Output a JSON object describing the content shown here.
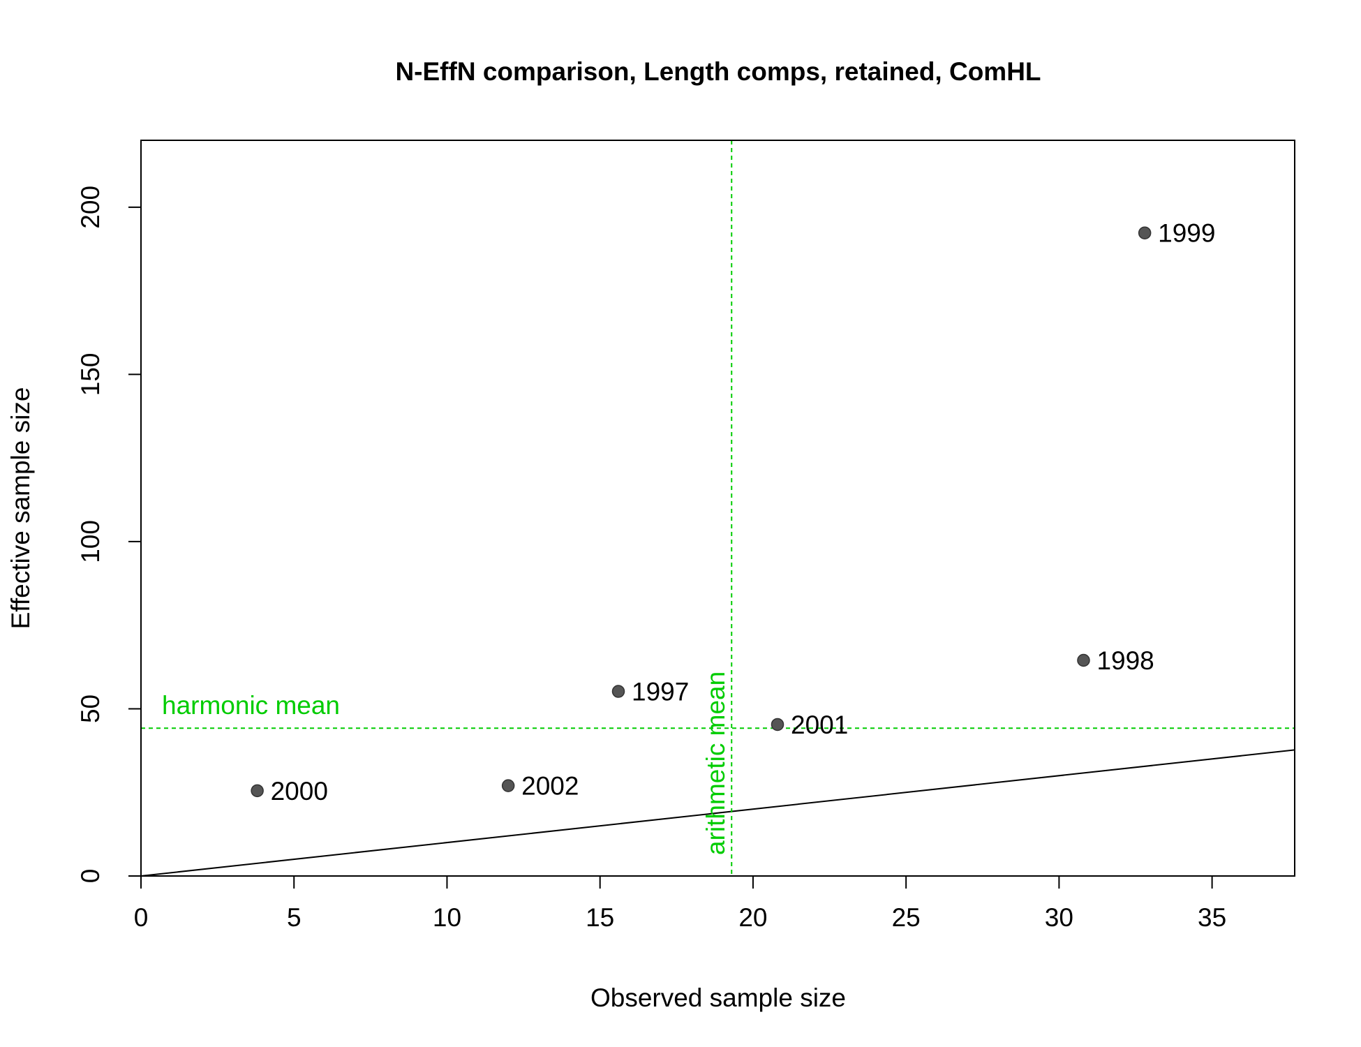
{
  "chart_data": {
    "type": "scatter",
    "title": "N-EffN comparison, Length comps, retained, ComHL",
    "xlabel": "Observed sample size",
    "ylabel": "Effective sample size",
    "xlim": [
      0,
      37.7
    ],
    "ylim": [
      0,
      220
    ],
    "x_ticks": [
      0,
      5,
      10,
      15,
      20,
      25,
      30,
      35
    ],
    "y_ticks": [
      0,
      50,
      100,
      150,
      200
    ],
    "grid": false,
    "points": [
      {
        "label": "1997",
        "x": 15.6,
        "y": 55.2
      },
      {
        "label": "1998",
        "x": 30.8,
        "y": 64.5
      },
      {
        "label": "1999",
        "x": 32.8,
        "y": 192.3
      },
      {
        "label": "2000",
        "x": 3.8,
        "y": 25.5
      },
      {
        "label": "2001",
        "x": 20.8,
        "y": 45.3
      },
      {
        "label": "2002",
        "x": 12.0,
        "y": 27.0
      }
    ],
    "point_color": "#555555",
    "reference_line": {
      "description": "1:1 line",
      "slope": 1,
      "intercept": 0,
      "color": "#000000"
    },
    "harmonic_mean": {
      "label": "harmonic mean",
      "value": 44.2,
      "color": "#00cc00"
    },
    "arithmetic_mean": {
      "label": "arithmetic mean",
      "value": 19.3,
      "color": "#00cc00"
    }
  }
}
